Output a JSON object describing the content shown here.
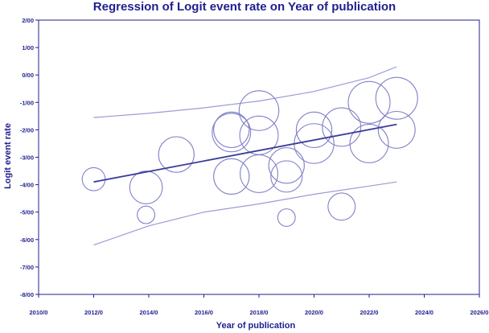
{
  "chart_data": {
    "type": "scatter",
    "title": "Regression of Logit event rate on Year of publication",
    "xlabel": "Year of publication",
    "ylabel": "Logit event rate",
    "xlim": [
      2010,
      2026
    ],
    "ylim": [
      -8,
      2
    ],
    "x_ticks": [
      2010,
      2012,
      2014,
      2016,
      2018,
      2020,
      2022,
      2024,
      2026
    ],
    "x_tick_labels": [
      "2010/0",
      "2012/0",
      "2014/0",
      "2016/0",
      "2018/0",
      "2020/0",
      "2022/0",
      "2024/0",
      "2026/0"
    ],
    "y_ticks": [
      2,
      1,
      0,
      -1,
      -2,
      -3,
      -4,
      -5,
      -6,
      -7,
      -8
    ],
    "y_tick_labels": [
      "2/00",
      "1/00",
      "0/00",
      "-1/00",
      "-2/00",
      "-3/00",
      "-4/00",
      "-5/00",
      "-6/00",
      "-7/00",
      "-8/00"
    ],
    "points": [
      {
        "x": 2012.0,
        "y": -3.8,
        "weight": 0.55
      },
      {
        "x": 2013.9,
        "y": -4.1,
        "weight": 0.78
      },
      {
        "x": 2013.9,
        "y": -5.1,
        "weight": 0.42
      },
      {
        "x": 2015.0,
        "y": -2.9,
        "weight": 0.85
      },
      {
        "x": 2017.0,
        "y": -2.0,
        "weight": 0.85
      },
      {
        "x": 2017.0,
        "y": -2.1,
        "weight": 0.92
      },
      {
        "x": 2017.0,
        "y": -3.7,
        "weight": 0.85
      },
      {
        "x": 2018.0,
        "y": -1.3,
        "weight": 0.95
      },
      {
        "x": 2018.0,
        "y": -2.2,
        "weight": 0.92
      },
      {
        "x": 2018.0,
        "y": -3.6,
        "weight": 0.9
      },
      {
        "x": 2019.0,
        "y": -3.3,
        "weight": 0.85
      },
      {
        "x": 2019.0,
        "y": -3.7,
        "weight": 0.75
      },
      {
        "x": 2019.0,
        "y": -5.2,
        "weight": 0.42
      },
      {
        "x": 2020.0,
        "y": -2.0,
        "weight": 0.85
      },
      {
        "x": 2020.0,
        "y": -2.5,
        "weight": 0.95
      },
      {
        "x": 2021.0,
        "y": -1.9,
        "weight": 0.92
      },
      {
        "x": 2021.0,
        "y": -4.8,
        "weight": 0.65
      },
      {
        "x": 2022.0,
        "y": -1.0,
        "weight": 1.0
      },
      {
        "x": 2022.0,
        "y": -2.5,
        "weight": 0.92
      },
      {
        "x": 2023.0,
        "y": -0.85,
        "weight": 1.0
      },
      {
        "x": 2023.0,
        "y": -2.0,
        "weight": 0.88
      }
    ],
    "regression_line": {
      "x": [
        2012,
        2023
      ],
      "y": [
        -3.9,
        -1.8
      ]
    },
    "upper_band": {
      "x": [
        2012,
        2014,
        2016,
        2018,
        2020,
        2022,
        2023
      ],
      "y": [
        -1.55,
        -1.4,
        -1.2,
        -0.95,
        -0.6,
        -0.1,
        0.3
      ]
    },
    "lower_band": {
      "x": [
        2012,
        2014,
        2016,
        2018,
        2020,
        2022,
        2023
      ],
      "y": [
        -6.2,
        -5.5,
        -5.0,
        -4.7,
        -4.35,
        -4.05,
        -3.9
      ]
    },
    "grid": false,
    "colors": {
      "axis": "#1f1f8f",
      "marker": "#8080c8",
      "regression": "#3a3a9a",
      "band": "#9a9ad8",
      "text": "#1f1f8f"
    }
  }
}
